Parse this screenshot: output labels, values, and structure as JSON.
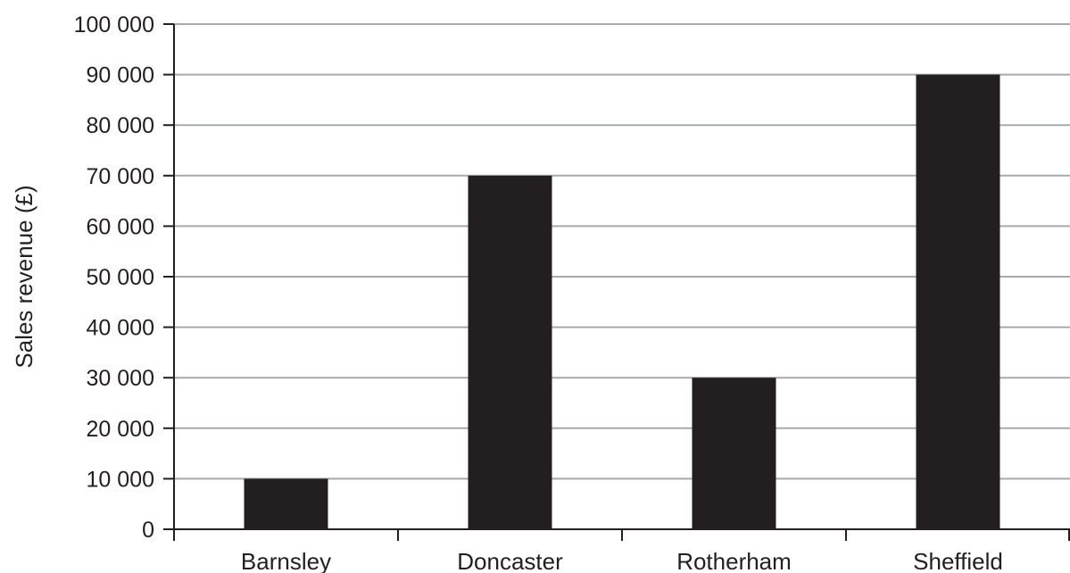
{
  "chart_data": {
    "type": "bar",
    "title": "",
    "xlabel": "",
    "ylabel": "Sales revenue (£)",
    "categories": [
      "Barnsley",
      "Doncaster",
      "Rotherham",
      "Sheffield"
    ],
    "values": [
      10000,
      70000,
      30000,
      90000
    ],
    "ylim": [
      0,
      100000
    ],
    "yticks": [
      0,
      10000,
      20000,
      30000,
      40000,
      50000,
      60000,
      70000,
      80000,
      90000,
      100000
    ],
    "ytick_labels": [
      "0",
      "10 000",
      "20 000",
      "30 000",
      "40 000",
      "50 000",
      "60 000",
      "70 000",
      "80 000",
      "90 000",
      "100 000"
    ],
    "grid": true,
    "legend": "none",
    "colors": {
      "bar": "#231f20",
      "grid": "#a7a9ac",
      "axis": "#231f20"
    }
  }
}
